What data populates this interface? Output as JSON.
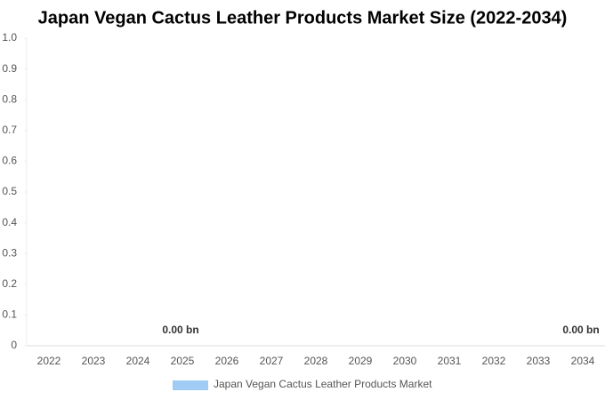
{
  "chart_data": {
    "type": "bar",
    "title": "Japan Vegan Cactus Leather Products Market Size (2022-2034)",
    "categories": [
      "2022",
      "2023",
      "2024",
      "2025",
      "2026",
      "2027",
      "2028",
      "2029",
      "2030",
      "2031",
      "2032",
      "2033",
      "2034"
    ],
    "series": [
      {
        "name": "Japan Vegan Cactus Leather Products Market",
        "color": "#a0cbf5",
        "values": [
          0,
          0,
          0,
          0,
          0,
          0,
          0,
          0,
          0,
          0,
          0,
          0,
          0
        ],
        "value_labels": [
          null,
          null,
          null,
          "0.00 bn",
          null,
          null,
          null,
          null,
          null,
          null,
          null,
          null,
          "0.00 bn"
        ]
      }
    ],
    "ylim": [
      0,
      1
    ],
    "yticks": [
      0,
      0.1,
      0.2,
      0.3,
      0.4,
      0.5,
      0.6,
      0.7,
      0.8,
      0.9,
      {
        "value": 1,
        "label": "1.0"
      }
    ]
  }
}
